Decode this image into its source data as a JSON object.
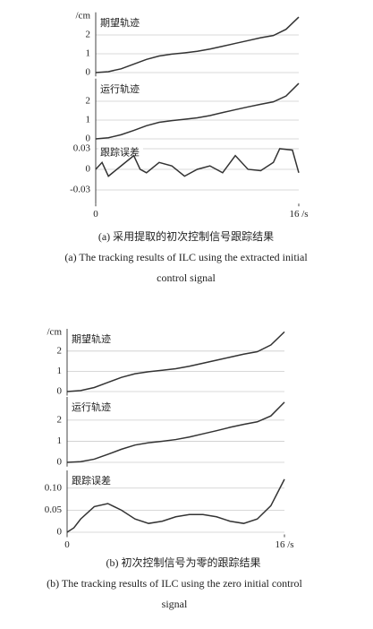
{
  "chart_data": [
    {
      "type": "line",
      "label": "期望轨迹",
      "y_label": "/cm",
      "color": "#333",
      "grid": true,
      "x": [
        0,
        1,
        2,
        3,
        4,
        5,
        6,
        7,
        8,
        9,
        10,
        11,
        12,
        13,
        14,
        15,
        16
      ],
      "values": [
        0,
        0.05,
        0.2,
        0.45,
        0.7,
        0.88,
        0.98,
        1.05,
        1.13,
        1.25,
        1.4,
        1.55,
        1.7,
        1.85,
        1.97,
        2.3,
        2.95
      ],
      "xlim": [
        0,
        16
      ],
      "ylim": [
        -0.2,
        3.2
      ],
      "yticks": [
        0,
        1,
        2
      ]
    },
    {
      "type": "line",
      "label": "运行轨迹",
      "color": "#333",
      "grid": true,
      "x": [
        0,
        1,
        2,
        3,
        4,
        5,
        6,
        7,
        8,
        9,
        10,
        11,
        12,
        13,
        14,
        15,
        16
      ],
      "values": [
        0,
        0.06,
        0.22,
        0.45,
        0.7,
        0.88,
        0.97,
        1.04,
        1.12,
        1.24,
        1.4,
        1.55,
        1.7,
        1.84,
        1.97,
        2.28,
        2.95
      ],
      "xlim": [
        0,
        16
      ],
      "ylim": [
        -0.2,
        3.2
      ],
      "yticks": [
        0,
        1,
        2
      ]
    },
    {
      "type": "line",
      "label": "跟踪误差",
      "color": "#333",
      "grid": true,
      "x": [
        0,
        0.5,
        1,
        2,
        3,
        3.5,
        4,
        5,
        6,
        7,
        8,
        9,
        10,
        11,
        12,
        13,
        14,
        14.5,
        15.5,
        16
      ],
      "values": [
        0,
        0.01,
        -0.01,
        0.005,
        0.02,
        0,
        -0.005,
        0.01,
        0.005,
        -0.01,
        0,
        0.005,
        -0.005,
        0.02,
        0,
        -0.002,
        0.01,
        0.03,
        0.028,
        -0.005
      ],
      "xlim": [
        0,
        16
      ],
      "ylim": [
        -0.05,
        0.04
      ],
      "yticks": [
        -0.03,
        0,
        0.03
      ],
      "xticks": [
        0,
        {
          "value": 16,
          "label": "16 /s"
        }
      ]
    },
    {
      "type": "line",
      "label": "期望轨迹",
      "y_label": "/cm",
      "color": "#333",
      "grid": true,
      "x": [
        0,
        1,
        2,
        3,
        4,
        5,
        6,
        7,
        8,
        9,
        10,
        11,
        12,
        13,
        14,
        15,
        16
      ],
      "values": [
        0,
        0.05,
        0.2,
        0.45,
        0.7,
        0.88,
        0.98,
        1.05,
        1.13,
        1.25,
        1.4,
        1.55,
        1.7,
        1.85,
        1.97,
        2.3,
        2.95
      ],
      "xlim": [
        0,
        16
      ],
      "ylim": [
        -0.2,
        3.1
      ],
      "yticks": [
        0,
        1,
        2
      ]
    },
    {
      "type": "line",
      "label": "运行轨迹",
      "color": "#333",
      "grid": true,
      "x": [
        0,
        1,
        2,
        3,
        4,
        5,
        6,
        7,
        8,
        9,
        10,
        11,
        12,
        13,
        14,
        15,
        16
      ],
      "values": [
        0,
        0.03,
        0.15,
        0.38,
        0.62,
        0.82,
        0.93,
        1.0,
        1.08,
        1.2,
        1.35,
        1.5,
        1.66,
        1.8,
        1.92,
        2.2,
        2.85
      ],
      "xlim": [
        0,
        16
      ],
      "ylim": [
        -0.2,
        3.1
      ],
      "yticks": [
        0,
        1,
        2
      ]
    },
    {
      "type": "line",
      "label": "跟踪误差",
      "color": "#333",
      "grid": true,
      "x": [
        0,
        0.5,
        1,
        2,
        3,
        4,
        5,
        6,
        7,
        8,
        9,
        10,
        11,
        12,
        13,
        14,
        15,
        16
      ],
      "values": [
        0,
        0.01,
        0.03,
        0.058,
        0.065,
        0.05,
        0.03,
        0.02,
        0.025,
        0.035,
        0.04,
        0.04,
        0.035,
        0.025,
        0.02,
        0.03,
        0.06,
        0.12
      ],
      "xlim": [
        0,
        16
      ],
      "ylim": [
        -0.005,
        0.14
      ],
      "yticks": [
        0,
        0.05,
        {
          "value": 0.1,
          "label": "0.10"
        }
      ],
      "xticks": [
        0,
        {
          "value": 16,
          "label": "16 /s"
        }
      ]
    }
  ],
  "captions": [
    {
      "zh": "(a) 采用提取的初次控制信号跟踪结果",
      "en": [
        "(a) The tracking results of ILC using the extracted initial",
        "control signal"
      ]
    },
    {
      "zh": "(b) 初次控制信号为零的跟踪结果",
      "en": [
        "(b) The tracking results of ILC using the zero initial control",
        "signal"
      ]
    }
  ]
}
